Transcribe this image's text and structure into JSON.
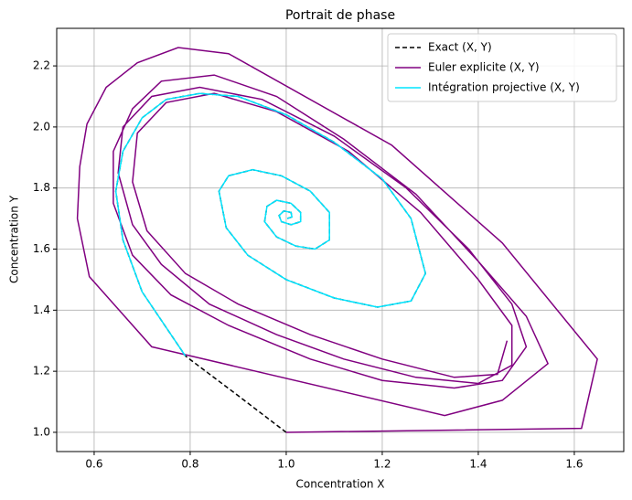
{
  "chart_data": {
    "type": "line",
    "title": "Portrait de phase",
    "xlabel": "Concentration X",
    "ylabel": "Concentration Y",
    "xlim": [
      0.522,
      1.703
    ],
    "ylim": [
      0.937,
      2.323
    ],
    "xticks": [
      0.6,
      0.8,
      {
        "value": 1,
        "label": "1.0"
      },
      1.2,
      1.4,
      1.6
    ],
    "yticks": [
      {
        "value": 1,
        "label": "1.0"
      },
      1.2,
      1.4,
      1.6,
      1.8,
      {
        "value": 2,
        "label": "2.0"
      },
      2.2
    ],
    "grid": true,
    "legend_loc": "upper right",
    "series": [
      {
        "name": "Exact (X, Y)",
        "color": "#000000",
        "linestyle": "dashed",
        "x": [
          1.0,
          0.9,
          0.79,
          0.7,
          0.66,
          0.645,
          0.66,
          0.7,
          0.75,
          0.82,
          0.9,
          1.0,
          1.1,
          1.2,
          1.26,
          1.29,
          1.26,
          1.19,
          1.1,
          1.0,
          0.92,
          0.875,
          0.86,
          0.88,
          0.93,
          0.99,
          1.05,
          1.09,
          1.09,
          1.06,
          1.02,
          0.98,
          0.955,
          0.96,
          0.98,
          1.01,
          1.03,
          1.03,
          1.01,
          0.99,
          0.985,
          0.995,
          1.01,
          1.012,
          1.002
        ],
        "values": [
          1.0,
          1.12,
          1.25,
          1.46,
          1.63,
          1.79,
          1.92,
          2.03,
          2.09,
          2.11,
          2.1,
          2.04,
          1.95,
          1.83,
          1.7,
          1.52,
          1.43,
          1.41,
          1.44,
          1.5,
          1.58,
          1.67,
          1.79,
          1.84,
          1.86,
          1.84,
          1.79,
          1.72,
          1.63,
          1.6,
          1.61,
          1.64,
          1.69,
          1.74,
          1.76,
          1.75,
          1.72,
          1.69,
          1.68,
          1.69,
          1.71,
          1.725,
          1.72,
          1.705,
          1.7
        ]
      },
      {
        "name": "Euler explicite (X, Y)",
        "color": "#800080",
        "linestyle": "solid",
        "x": [
          1.0,
          1.615,
          1.648,
          1.45,
          1.22,
          0.88,
          0.775,
          0.69,
          0.625,
          0.585,
          0.57,
          0.565,
          0.59,
          0.72,
          1.33,
          1.45,
          1.545,
          1.5,
          1.4,
          1.27,
          1.12,
          0.98,
          0.85,
          0.74,
          0.68,
          0.64,
          0.64,
          0.68,
          0.76,
          0.88,
          1.05,
          1.2,
          1.35,
          1.45,
          1.5,
          1.47,
          1.38,
          1.25,
          1.1,
          0.95,
          0.82,
          0.72,
          0.66,
          0.65,
          0.68,
          0.74,
          0.84,
          0.98,
          1.12,
          1.27,
          1.4,
          1.47,
          1.47,
          1.4,
          1.28,
          1.13,
          0.98,
          0.85,
          0.75,
          0.69,
          0.68,
          0.71,
          0.79,
          0.9,
          1.05,
          1.2,
          1.35,
          1.44,
          1.46
        ],
        "values": [
          1.0,
          1.013,
          1.24,
          1.62,
          1.94,
          2.24,
          2.26,
          2.21,
          2.13,
          2.01,
          1.87,
          1.7,
          1.51,
          1.28,
          1.055,
          1.105,
          1.225,
          1.38,
          1.56,
          1.78,
          1.96,
          2.1,
          2.17,
          2.15,
          2.06,
          1.92,
          1.75,
          1.58,
          1.45,
          1.35,
          1.24,
          1.17,
          1.145,
          1.17,
          1.28,
          1.42,
          1.6,
          1.8,
          1.97,
          2.09,
          2.13,
          2.1,
          2.0,
          1.85,
          1.68,
          1.55,
          1.42,
          1.32,
          1.24,
          1.18,
          1.16,
          1.22,
          1.35,
          1.5,
          1.72,
          1.92,
          2.05,
          2.11,
          2.08,
          1.98,
          1.82,
          1.66,
          1.52,
          1.42,
          1.32,
          1.24,
          1.18,
          1.19,
          1.3
        ]
      },
      {
        "name": "Intégration projective (X, Y)",
        "color": "#00e5ff",
        "linestyle": "solid",
        "x": [
          0.79,
          0.7,
          0.66,
          0.645,
          0.66,
          0.7,
          0.75,
          0.82,
          0.9,
          1.0,
          1.1,
          1.2,
          1.26,
          1.29,
          1.26,
          1.19,
          1.1,
          1.0,
          0.92,
          0.875,
          0.86,
          0.88,
          0.93,
          0.99,
          1.05,
          1.09,
          1.09,
          1.06,
          1.02,
          0.98,
          0.955,
          0.96,
          0.98,
          1.01,
          1.03,
          1.03,
          1.01,
          0.99,
          0.985,
          0.995,
          1.01,
          1.012,
          1.002
        ],
        "values": [
          1.25,
          1.46,
          1.63,
          1.79,
          1.92,
          2.03,
          2.09,
          2.11,
          2.1,
          2.04,
          1.95,
          1.83,
          1.7,
          1.52,
          1.43,
          1.41,
          1.44,
          1.5,
          1.58,
          1.67,
          1.79,
          1.84,
          1.86,
          1.84,
          1.79,
          1.72,
          1.63,
          1.6,
          1.61,
          1.64,
          1.69,
          1.74,
          1.76,
          1.75,
          1.72,
          1.69,
          1.68,
          1.69,
          1.71,
          1.725,
          1.72,
          1.705,
          1.7
        ]
      }
    ]
  }
}
